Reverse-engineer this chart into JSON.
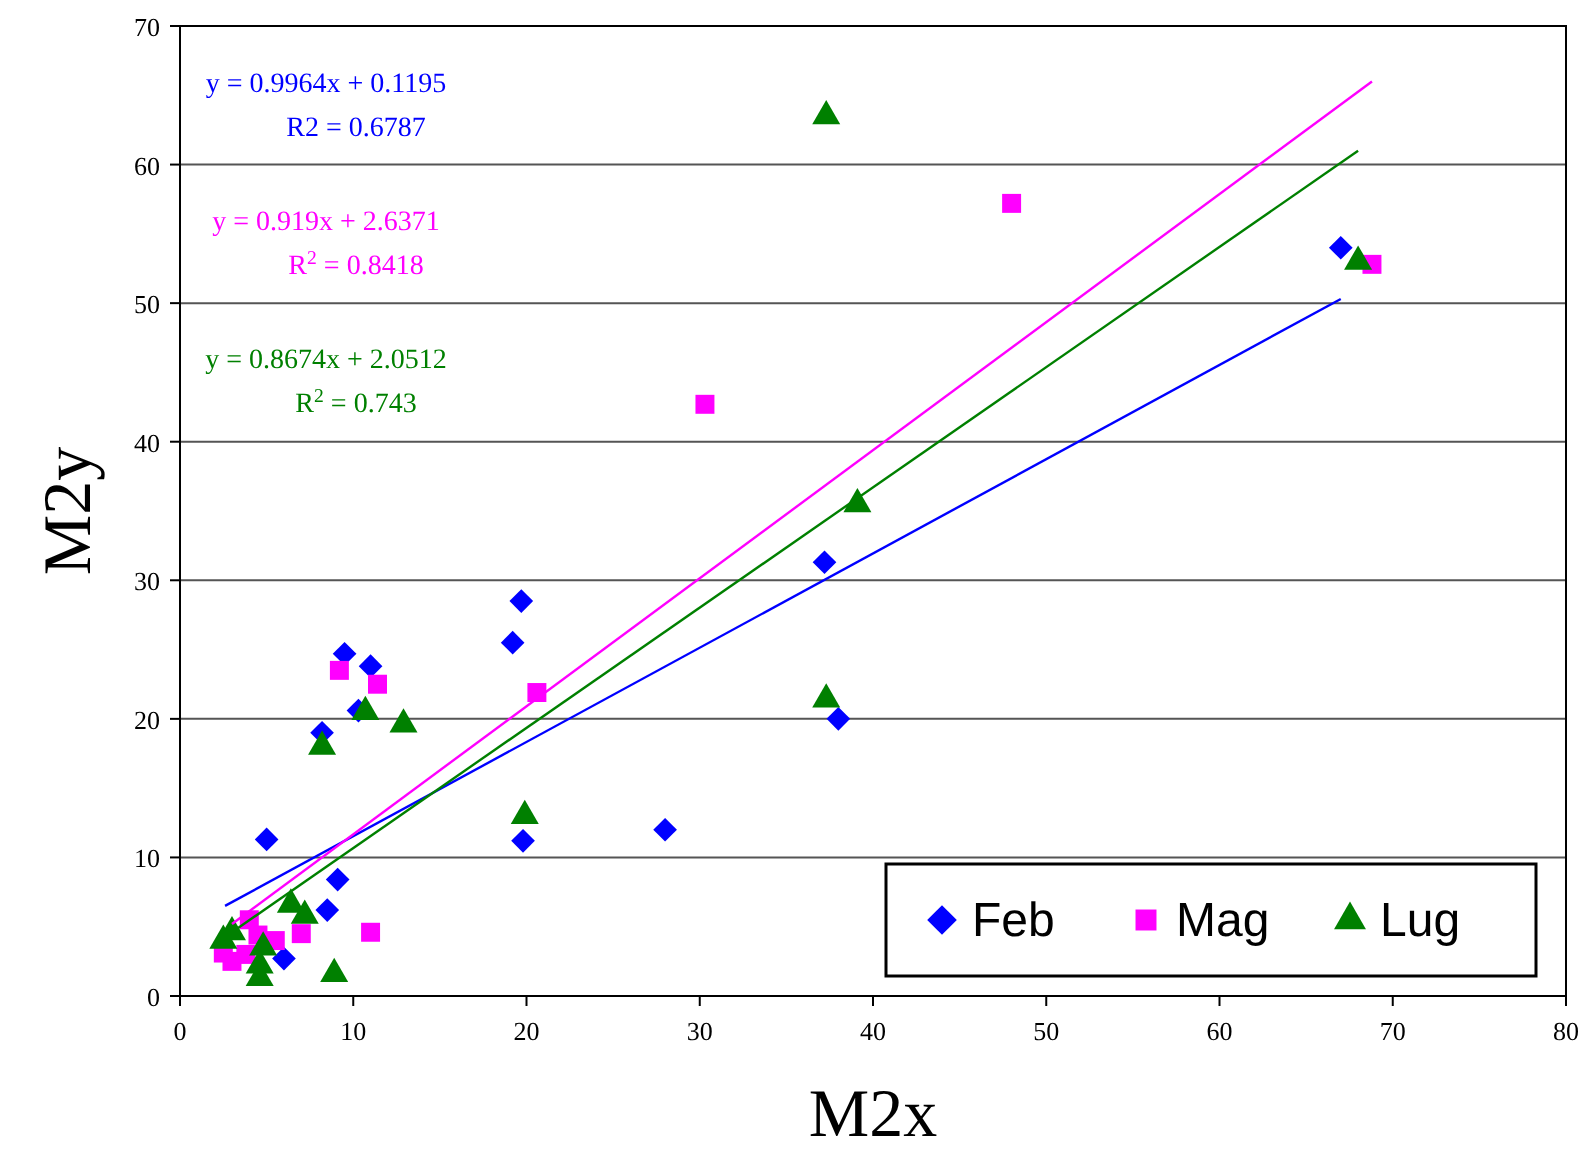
{
  "chart_data": {
    "type": "scatter",
    "xlabel": "M2x",
    "ylabel": "M2y",
    "xlim": [
      0,
      80
    ],
    "xticks": [
      0,
      10,
      20,
      30,
      40,
      50,
      60,
      70,
      80
    ],
    "ylim": [
      0,
      70
    ],
    "yticks": [
      0,
      10,
      20,
      30,
      40,
      50,
      60,
      70
    ],
    "grid": "y",
    "legend": "bottom right",
    "series": [
      {
        "name": "Feb",
        "color": "#0000ff",
        "marker": "diamond",
        "x": [
          67,
          37.2,
          38,
          28,
          19.8,
          19.2,
          19.7,
          9.5,
          11,
          10.3,
          8.2,
          5,
          8.5,
          9.1,
          6
        ],
        "values": [
          54,
          31.3,
          20,
          12,
          11.2,
          25.5,
          28.5,
          24.7,
          23.8,
          20.6,
          19,
          11.3,
          6.2,
          8.4,
          2.7
        ]
      },
      {
        "name": "Mag",
        "color": "#ff00ff",
        "marker": "square",
        "x": [
          68.8,
          48,
          30.3,
          20.6,
          9.2,
          11.4,
          11,
          7,
          5.5,
          4,
          3.8,
          3,
          2.5,
          4.5
        ],
        "values": [
          52.8,
          57.2,
          42.7,
          21.9,
          23.5,
          22.5,
          4.6,
          4.5,
          4,
          5.5,
          3,
          2.5,
          3.1,
          4.4
        ]
      },
      {
        "name": "Lug",
        "color": "#008000",
        "marker": "triangle",
        "x": [
          37.3,
          68,
          39.1,
          37.3,
          19.9,
          12.9,
          10.7,
          8.2,
          8.9,
          7.2,
          6.4,
          4.6,
          4.6,
          4.8,
          3,
          2.5
        ],
        "values": [
          63.5,
          53,
          35.5,
          21.4,
          13,
          19.6,
          20.5,
          18,
          1.6,
          5.8,
          6.6,
          1.3,
          2.2,
          3.5,
          4.6,
          4
        ]
      },
      {
        "type": "line",
        "color": "#0000ff",
        "x": [
          2.6,
          67
        ],
        "values": [
          6.5,
          50.3
        ]
      },
      {
        "type": "line",
        "color": "#ff00ff",
        "x": [
          3,
          68.8
        ],
        "values": [
          5.2,
          66
        ]
      },
      {
        "type": "line",
        "color": "#008000",
        "x": [
          3,
          68
        ],
        "values": [
          4.6,
          61
        ]
      }
    ],
    "annotations": [
      "y = 0.9964x + 0.1195",
      "R2 = 0.6787",
      "y = 0.919x + 2.6371",
      "R$^{2}$ = 0.8418",
      "y = 0.8674x + 2.0512",
      "R$^{2}$ = 0.743"
    ]
  }
}
